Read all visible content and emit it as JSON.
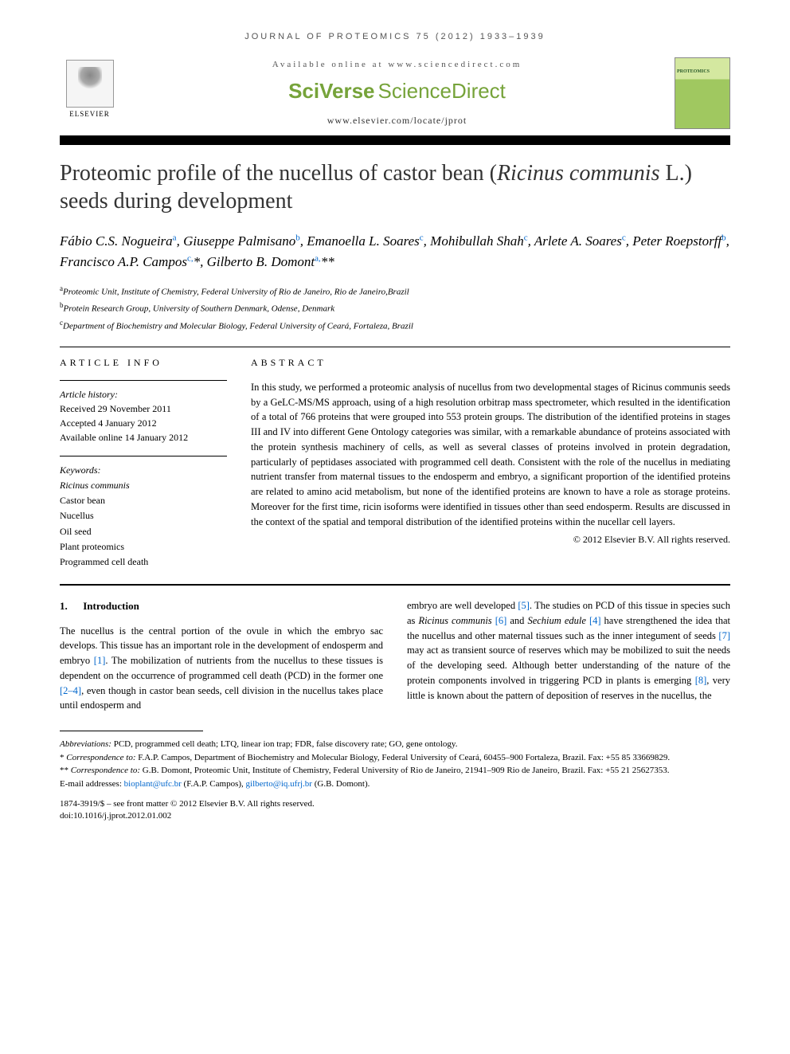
{
  "journal_header": "JOURNAL OF PROTEOMICS 75 (2012) 1933–1939",
  "banner": {
    "available": "Available online at www.sciencedirect.com",
    "sciverse": "SciVerse",
    "sciencedirect": "ScienceDirect",
    "url": "www.elsevier.com/locate/jprot",
    "elsevier": "ELSEVIER",
    "cover_title": "PROTEOMICS"
  },
  "title": {
    "part1": "Proteomic profile of the nucellus of castor bean (",
    "italic": "Ricinus communis",
    "part2": " L.) seeds during development"
  },
  "authors_html": "Fábio C.S. Nogueira<sup>a</sup>, Giuseppe Palmisano<sup>b</sup>, Emanoella L. Soares<sup>c</sup>, Mohibullah Shah<sup>c</sup>, Arlete A. Soares<sup>c</sup>, Peter Roepstorff<sup>b</sup>, Francisco A.P. Campos<sup>c,</sup>*, Gilberto B. Domont<sup>a,</sup>**",
  "affiliations": [
    {
      "sup": "a",
      "text": "Proteomic Unit, Institute of Chemistry, Federal University of Rio de Janeiro, Rio de Janeiro,Brazil"
    },
    {
      "sup": "b",
      "text": "Protein Research Group, University of Southern Denmark, Odense, Denmark"
    },
    {
      "sup": "c",
      "text": "Department of Biochemistry and Molecular Biology, Federal University of Ceará, Fortaleza, Brazil"
    }
  ],
  "article_info": {
    "header": "ARTICLE INFO",
    "history_label": "Article history:",
    "received": "Received 29 November 2011",
    "accepted": "Accepted 4 January 2012",
    "online": "Available online 14 January 2012",
    "keywords_label": "Keywords:",
    "keywords": [
      "Ricinus communis",
      "Castor bean",
      "Nucellus",
      "Oil seed",
      "Plant proteomics",
      "Programmed cell death"
    ]
  },
  "abstract": {
    "header": "ABSTRACT",
    "text": "In this study, we performed a proteomic analysis of nucellus from two developmental stages of Ricinus communis seeds by a GeLC-MS/MS approach, using of a high resolution orbitrap mass spectrometer, which resulted in the identification of a total of 766 proteins that were grouped into 553 protein groups. The distribution of the identified proteins in stages III and IV into different Gene Ontology categories was similar, with a remarkable abundance of proteins associated with the protein synthesis machinery of cells, as well as several classes of proteins involved in protein degradation, particularly of peptidases associated with programmed cell death. Consistent with the role of the nucellus in mediating nutrient transfer from maternal tissues to the endosperm and embryo, a significant proportion of the identified proteins are related to amino acid metabolism, but none of the identified proteins are known to have a role as storage proteins. Moreover for the first time, ricin isoforms were identified in tissues other than seed endosperm. Results are discussed in the context of the spatial and temporal distribution of the identified proteins within the nucellar cell layers.",
    "copyright": "© 2012 Elsevier B.V. All rights reserved."
  },
  "intro": {
    "number": "1.",
    "heading": "Introduction",
    "col1": "The nucellus is the central portion of the ovule in which the embryo sac develops. This tissue has an important role in the development of endosperm and embryo [1]. The mobilization of nutrients from the nucellus to these tissues is dependent on the occurrence of programmed cell death (PCD) in the former one [2–4], even though in castor bean seeds, cell division in the nucellus takes place until endosperm and",
    "col2": "embryo are well developed [5]. The studies on PCD of this tissue in species such as Ricinus communis [6] and Sechium edule [4] have strengthened the idea that the nucellus and other maternal tissues such as the inner integument of seeds [7] may act as transient source of reserves which may be mobilized to suit the needs of the developing seed. Although better understanding of the nature of the protein components involved in triggering PCD in plants is emerging [8], very little is known about the pattern of deposition of reserves in the nucellus, the"
  },
  "footnotes": {
    "abbrev_label": "Abbreviations:",
    "abbrev": " PCD, programmed cell death; LTQ, linear ion trap; FDR, false discovery rate; GO, gene ontology.",
    "corr1": "* Correspondence to: F.A.P. Campos, Department of Biochemistry and Molecular Biology, Federal University of Ceará, 60455–900 Fortaleza, Brazil. Fax: +55 85 33669829.",
    "corr2": "** Correspondence to: G.B. Domont, Proteomic Unit, Institute of Chemistry, Federal University of Rio de Janeiro, 21941–909 Rio de Janeiro, Brazil. Fax: +55 21 25627353.",
    "email_label": "E-mail addresses: ",
    "email1": "bioplant@ufc.br",
    "email1_who": " (F.A.P. Campos), ",
    "email2": "gilberto@iq.ufrj.br",
    "email2_who": " (G.B. Domont).",
    "issn": "1874-3919/$ – see front matter © 2012 Elsevier B.V. All rights reserved.",
    "doi": "doi:10.1016/j.jprot.2012.01.002"
  },
  "colors": {
    "accent_green": "#76a33a",
    "link_blue": "#0066cc",
    "text_primary": "#000000",
    "text_gray": "#555555",
    "background": "#ffffff"
  },
  "typography": {
    "base_font": "Georgia, Times New Roman, serif",
    "header_font": "Arial, sans-serif",
    "title_fontsize": 28,
    "authors_fontsize": 17,
    "body_fontsize": 12.5,
    "small_fontsize": 11
  }
}
